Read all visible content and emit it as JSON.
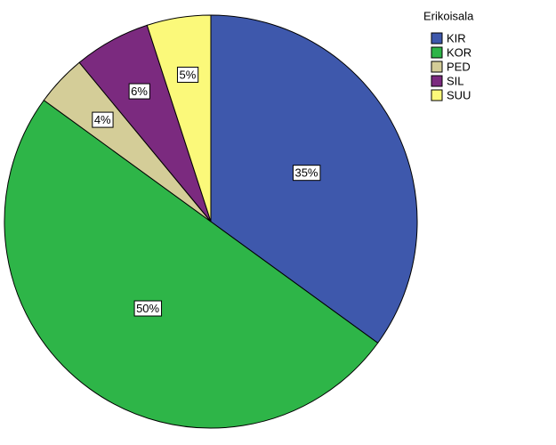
{
  "chart_data": {
    "type": "pie",
    "legend_title": "Erikoisala",
    "legend_position": "upper right",
    "categories": [
      "KIR",
      "KOR",
      "PED",
      "SIL",
      "SUU"
    ],
    "values": [
      35,
      50,
      4,
      6,
      5
    ],
    "value_labels": [
      "35%",
      "50%",
      "4%",
      "6%",
      "5%"
    ],
    "colors": [
      "#3e58ac",
      "#2eb548",
      "#d4cd98",
      "#7b2a7f",
      "#fbf97a"
    ]
  }
}
